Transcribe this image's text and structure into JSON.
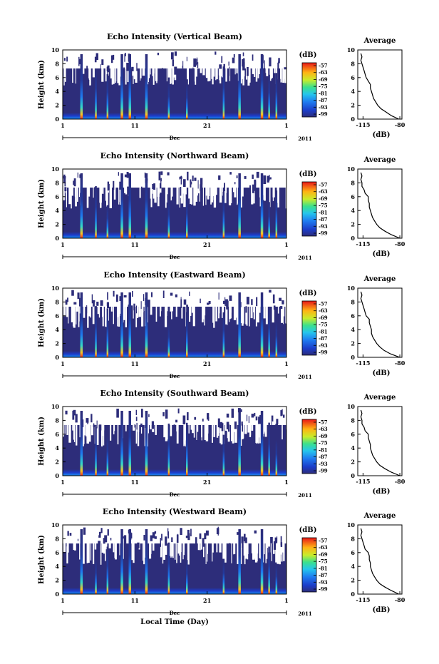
{
  "chart_data": [
    {
      "type": "heatmap",
      "title": "Echo Intensity (Vertical Beam)",
      "ylabel": "Height (km)",
      "y_ticks": [
        "0",
        "2",
        "4",
        "6",
        "8",
        "10"
      ],
      "x_ticks": [
        "1",
        "11",
        "21",
        "1"
      ],
      "month_label": "Dec",
      "year_label": "2011",
      "colorbar_unit": "(dB)",
      "colorbar_ticks": [
        "-57",
        "-63",
        "-69",
        "-75",
        "-81",
        "-87",
        "-93",
        "-99"
      ],
      "profile": {
        "title": "Average",
        "xlabel": "(dB)",
        "x_ticks": [
          "-115",
          "-80"
        ],
        "y_ticks": [
          "0",
          "2",
          "4",
          "6",
          "8",
          "10"
        ],
        "xlim": [
          -120,
          -78
        ],
        "ylim": [
          0,
          10
        ],
        "height_km": [
          0,
          0.5,
          1,
          1.5,
          2,
          2.5,
          3,
          3.5,
          4,
          4.5,
          5,
          5.5,
          6,
          6.5,
          7,
          7.5,
          8,
          8.5,
          9,
          9.5
        ],
        "value_db": [
          -81,
          -88,
          -93,
          -98,
          -101,
          -103,
          -105,
          -106,
          -107,
          -108,
          -108,
          -110,
          -112,
          -113,
          -114,
          -115,
          -116,
          -117,
          -116,
          -117
        ]
      }
    },
    {
      "type": "heatmap",
      "title": "Echo Intensity (Northward Beam)",
      "ylabel": "Height (km)",
      "y_ticks": [
        "0",
        "2",
        "4",
        "6",
        "8",
        "10"
      ],
      "x_ticks": [
        "1",
        "11",
        "21",
        "1"
      ],
      "month_label": "Dec",
      "year_label": "2011",
      "colorbar_unit": "(dB)",
      "colorbar_ticks": [
        "-57",
        "-63",
        "-69",
        "-75",
        "-81",
        "-87",
        "-93",
        "-99"
      ],
      "profile": {
        "title": "Average",
        "xlabel": "(dB)",
        "x_ticks": [
          "-115",
          "-80"
        ],
        "y_ticks": [
          "0",
          "2",
          "4",
          "6",
          "8",
          "10"
        ],
        "xlim": [
          -120,
          -78
        ],
        "ylim": [
          0,
          10
        ],
        "height_km": [
          0,
          0.5,
          1,
          1.5,
          2,
          2.5,
          3,
          3.5,
          4,
          4.5,
          5,
          5.5,
          6,
          6.5,
          7,
          7.5,
          8,
          8.5,
          9,
          9.5
        ],
        "value_db": [
          -80,
          -88,
          -94,
          -99,
          -102,
          -104,
          -106,
          -107,
          -108,
          -109,
          -109,
          -110,
          -110,
          -113,
          -114,
          -116,
          -116,
          -117,
          -116,
          -117
        ]
      }
    },
    {
      "type": "heatmap",
      "title": "Echo Intensity (Eastward Beam)",
      "ylabel": "Height (km)",
      "y_ticks": [
        "0",
        "2",
        "4",
        "6",
        "8",
        "10"
      ],
      "x_ticks": [
        "1",
        "11",
        "21",
        "1"
      ],
      "month_label": "Dec",
      "year_label": "2011",
      "colorbar_unit": "(dB)",
      "colorbar_ticks": [
        "-57",
        "-63",
        "-69",
        "-75",
        "-81",
        "-87",
        "-93",
        "-99"
      ],
      "profile": {
        "title": "Average",
        "xlabel": "(dB)",
        "x_ticks": [
          "-115",
          "-80"
        ],
        "y_ticks": [
          "0",
          "2",
          "4",
          "6",
          "8",
          "10"
        ],
        "xlim": [
          -120,
          -78
        ],
        "ylim": [
          0,
          10
        ],
        "height_km": [
          0,
          0.5,
          1,
          1.5,
          2,
          2.5,
          3,
          3.5,
          4,
          4.5,
          5,
          5.5,
          6,
          6.5,
          7,
          7.5,
          8,
          8.5,
          9,
          9.5
        ],
        "value_db": [
          -80,
          -89,
          -95,
          -99,
          -102,
          -104,
          -106,
          -107,
          -107,
          -108,
          -109,
          -109,
          -112,
          -113,
          -114,
          -115,
          -116,
          -117,
          -116,
          -117
        ]
      }
    },
    {
      "type": "heatmap",
      "title": "Echo Intensity (Southward Beam)",
      "ylabel": "Height (km)",
      "y_ticks": [
        "0",
        "2",
        "4",
        "6",
        "8",
        "10"
      ],
      "x_ticks": [
        "1",
        "11",
        "21",
        "1"
      ],
      "month_label": "Dec",
      "year_label": "2011",
      "colorbar_unit": "(dB)",
      "colorbar_ticks": [
        "-57",
        "-63",
        "-69",
        "-75",
        "-81",
        "-87",
        "-93",
        "-99"
      ],
      "profile": {
        "title": "Average",
        "xlabel": "(dB)",
        "x_ticks": [
          "-115",
          "-80"
        ],
        "y_ticks": [
          "0",
          "2",
          "4",
          "6",
          "8",
          "10"
        ],
        "xlim": [
          -120,
          -78
        ],
        "ylim": [
          0,
          10
        ],
        "height_km": [
          0,
          0.5,
          1,
          1.5,
          2,
          2.5,
          3,
          3.5,
          4,
          4.5,
          5,
          5.5,
          6,
          6.5,
          7,
          7.5,
          8,
          8.5,
          9,
          9.5
        ],
        "value_db": [
          -80,
          -88,
          -94,
          -99,
          -102,
          -104,
          -106,
          -107,
          -108,
          -108,
          -109,
          -110,
          -110,
          -113,
          -114,
          -116,
          -116,
          -117,
          -116,
          -117
        ]
      }
    },
    {
      "type": "heatmap",
      "title": "Echo Intensity (Westward Beam)",
      "ylabel": "Height (km)",
      "xlabel": "Local Time (Day)",
      "y_ticks": [
        "0",
        "2",
        "4",
        "6",
        "8",
        "10"
      ],
      "x_ticks": [
        "1",
        "11",
        "21",
        "1"
      ],
      "month_label": "Dec",
      "year_label": "2011",
      "colorbar_unit": "(dB)",
      "colorbar_ticks": [
        "-57",
        "-63",
        "-69",
        "-75",
        "-81",
        "-87",
        "-93",
        "-99"
      ],
      "profile": {
        "title": "Average",
        "xlabel": "(dB)",
        "x_ticks": [
          "-115",
          "-80"
        ],
        "y_ticks": [
          "0",
          "2",
          "4",
          "6",
          "8",
          "10"
        ],
        "xlim": [
          -120,
          -78
        ],
        "ylim": [
          0,
          10
        ],
        "height_km": [
          0,
          0.5,
          1,
          1.5,
          2,
          2.5,
          3,
          3.5,
          4,
          4.5,
          5,
          5.5,
          6,
          6.5,
          7,
          7.5,
          8,
          8.5,
          9,
          9.5
        ],
        "value_db": [
          -81,
          -88,
          -94,
          -99,
          -102,
          -104,
          -106,
          -107,
          -108,
          -108,
          -109,
          -109,
          -110,
          -113,
          -114,
          -115,
          -116,
          -117,
          -116,
          -117
        ]
      }
    }
  ]
}
